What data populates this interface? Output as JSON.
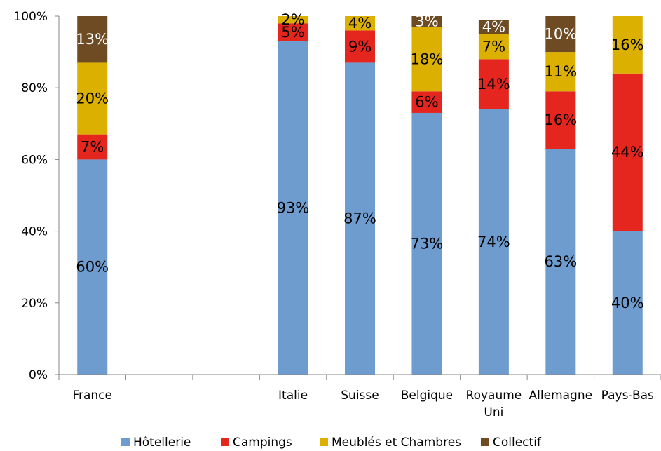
{
  "chart_data": {
    "type": "bar",
    "stacked": true,
    "percent_stacked": true,
    "categories": [
      "France",
      "",
      "",
      "Italie",
      "Suisse",
      "Belgique",
      "Royaume Uni",
      "Allemagne",
      "Pays-Bas"
    ],
    "category_label_lines": [
      [
        "France"
      ],
      [],
      [],
      [
        "Italie"
      ],
      [
        "Suisse"
      ],
      [
        "Belgique"
      ],
      [
        "Royaume",
        "Uni"
      ],
      [
        "Allemagne"
      ],
      [
        "Pays-Bas"
      ]
    ],
    "series": [
      {
        "name": "Hôtellerie",
        "color": "#6f9ccf",
        "values": [
          60,
          null,
          null,
          93,
          87,
          73,
          74,
          63,
          40
        ],
        "labels": [
          "60%",
          "",
          "",
          "93%",
          "87%",
          "73%",
          "74%",
          "63%",
          "40%"
        ],
        "label_color": "#000000"
      },
      {
        "name": "Campings",
        "color": "#e4261f",
        "values": [
          7,
          null,
          null,
          5,
          9,
          6,
          14,
          16,
          44
        ],
        "labels": [
          "7%",
          "",
          "",
          "5%",
          "9%",
          "6%",
          "14%",
          "16%",
          "44%"
        ],
        "label_color": "#000000"
      },
      {
        "name": "Meublés et Chambres",
        "color": "#dcb000",
        "values": [
          20,
          null,
          null,
          2,
          4,
          18,
          7,
          11,
          16
        ],
        "labels": [
          "20%",
          "",
          "",
          "2%",
          "4%",
          "18%",
          "7%",
          "11%",
          "16%"
        ],
        "label_color": "#000000"
      },
      {
        "name": "Collectif",
        "color": "#6f4b23",
        "values": [
          13,
          null,
          null,
          0,
          0,
          3,
          4,
          10,
          0
        ],
        "labels": [
          "13%",
          "",
          "",
          "",
          "",
          "3%",
          "4%",
          "10%",
          ""
        ],
        "label_color": "#ffffff"
      }
    ],
    "y_ticks": [
      0,
      20,
      40,
      60,
      80,
      100
    ],
    "y_tick_labels": [
      "0%",
      "20%",
      "40%",
      "60%",
      "80%",
      "100%"
    ],
    "ylim": [
      0,
      100
    ],
    "grid": false,
    "legend_position": "bottom",
    "title": "",
    "xlabel": "",
    "ylabel": ""
  }
}
